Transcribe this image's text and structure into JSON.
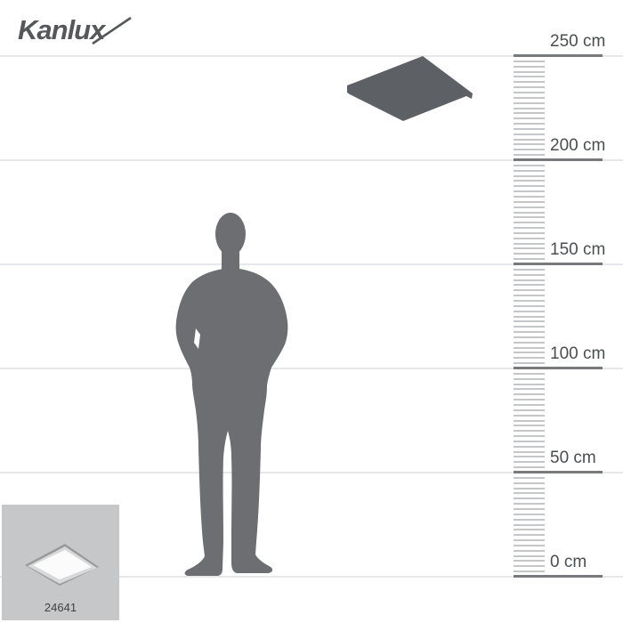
{
  "brand": {
    "logo_text": "Kanlux"
  },
  "ruler": {
    "unit": "cm",
    "min_cm": 0,
    "max_cm": 250,
    "major_step_cm": 50,
    "minor_step_cm": 2.5,
    "labels": [
      "250 cm",
      "200 cm",
      "150 cm",
      "100 cm",
      "50 cm",
      "0 cm"
    ]
  },
  "figures": {
    "person_icon": "standing-man-silhouette",
    "product_icon": "square-ceiling-panel-silhouette"
  },
  "thumbnail": {
    "product_code": "24641",
    "image_icon": "ceiling-panel-light-photo"
  },
  "colors": {
    "page_background": "#ffffff",
    "person_silhouette": "#6c6e71",
    "product_silhouette": "#5d6165",
    "ruler_major_line": "#77797c",
    "ruler_tick": "#c4c6c8",
    "gridline": "#e6e7e8",
    "label_text": "#4b4d50",
    "logo_text": "#55575b",
    "thumbnail_background": "#c6c7c8",
    "product_code_text": "#3f4143",
    "thumb_frame_dark": "#98999b",
    "thumb_frame_light": "#d8d9da",
    "thumb_panel_face": "#fbfbfc"
  }
}
